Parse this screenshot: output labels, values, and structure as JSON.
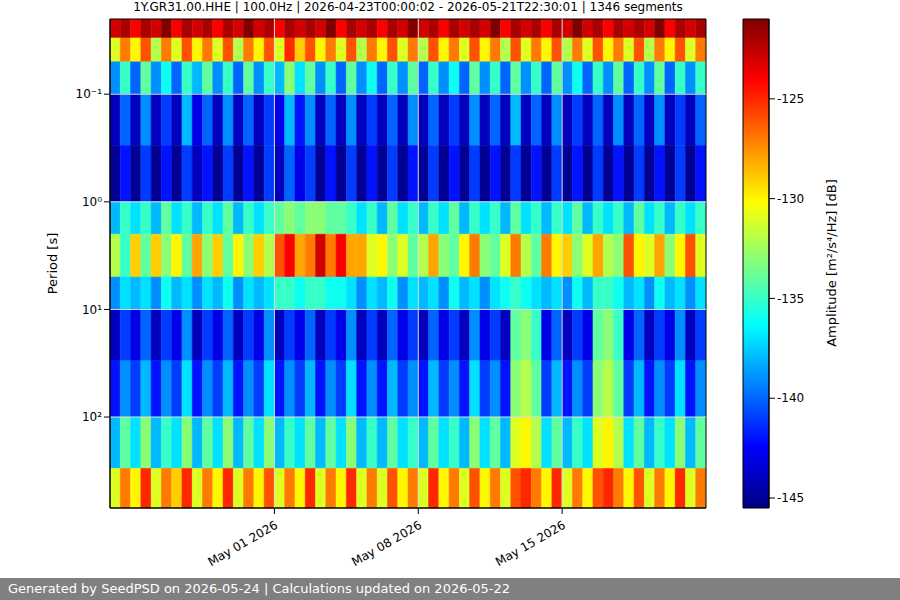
{
  "chart_data": {
    "type": "heatmap",
    "title": "1Y.GR31.00.HHE | 100.0Hz | 2026-04-23T00:00:02 - 2026-05-21T22:30:01 | 1346 segments",
    "ylabel": "Period [s]",
    "footer": "Generated by SeedPSD on 2026-05-24 | Calculations updated on 2026-05-22",
    "log": "y",
    "grid": true,
    "xlim": [
      "2026-04-23T00:00Z",
      "2026-05-22T00:00Z"
    ],
    "xticks": [
      {
        "value": "2026-05-01T00:00Z",
        "label": "May 01 2026"
      },
      {
        "value": "2026-05-08T00:00Z",
        "label": "May 08 2026"
      },
      {
        "value": "2026-05-15T00:00Z",
        "label": "May 15 2026"
      }
    ],
    "ylim": [
      0.02,
      700
    ],
    "yticks": [
      {
        "value": 0.1,
        "label": "10⁻¹"
      },
      {
        "value": 1,
        "label": "10⁰"
      },
      {
        "value": 10,
        "label": "10¹"
      },
      {
        "value": 100,
        "label": "10²"
      }
    ],
    "x_edges": [
      "2026-04-23T00:00Z",
      "2026-04-23T12:00Z",
      "2026-04-24T00:00Z",
      "2026-04-24T12:00Z",
      "2026-04-25T00:00Z",
      "2026-04-25T12:00Z",
      "2026-04-26T00:00Z",
      "2026-04-26T12:00Z",
      "2026-04-27T00:00Z",
      "2026-04-27T12:00Z",
      "2026-04-28T00:00Z",
      "2026-04-28T12:00Z",
      "2026-04-29T00:00Z",
      "2026-04-29T12:00Z",
      "2026-04-30T00:00Z",
      "2026-04-30T12:00Z",
      "2026-05-01T00:00Z",
      "2026-05-01T12:00Z",
      "2026-05-02T00:00Z",
      "2026-05-02T12:00Z",
      "2026-05-03T00:00Z",
      "2026-05-03T12:00Z",
      "2026-05-04T00:00Z",
      "2026-05-04T12:00Z",
      "2026-05-05T00:00Z",
      "2026-05-05T12:00Z",
      "2026-05-06T00:00Z",
      "2026-05-06T12:00Z",
      "2026-05-07T00:00Z",
      "2026-05-07T12:00Z",
      "2026-05-08T00:00Z",
      "2026-05-08T12:00Z",
      "2026-05-09T00:00Z",
      "2026-05-09T12:00Z",
      "2026-05-10T00:00Z",
      "2026-05-10T12:00Z",
      "2026-05-11T00:00Z",
      "2026-05-11T12:00Z",
      "2026-05-12T00:00Z",
      "2026-05-12T12:00Z",
      "2026-05-13T00:00Z",
      "2026-05-13T12:00Z",
      "2026-05-14T00:00Z",
      "2026-05-14T12:00Z",
      "2026-05-15T00:00Z",
      "2026-05-15T12:00Z",
      "2026-05-16T00:00Z",
      "2026-05-16T12:00Z",
      "2026-05-17T00:00Z",
      "2026-05-17T12:00Z",
      "2026-05-18T00:00Z",
      "2026-05-18T12:00Z",
      "2026-05-19T00:00Z",
      "2026-05-19T12:00Z",
      "2026-05-20T00:00Z",
      "2026-05-20T12:00Z",
      "2026-05-21T00:00Z",
      "2026-05-21T12:00Z",
      "2026-05-22T00:00Z"
    ],
    "y_edges": [
      0.02,
      0.03,
      0.05,
      0.1,
      0.3,
      1,
      2,
      5,
      10,
      30,
      100,
      300,
      700
    ],
    "values": [
      [
        -123,
        -122,
        -124,
        -122,
        -123,
        -121,
        -124,
        -122,
        -123,
        -122,
        -124,
        -122,
        -123,
        -121,
        -123,
        -122,
        -124,
        -122,
        -123,
        -122,
        -123,
        -121,
        -124,
        -122,
        -123,
        -122,
        -124,
        -122,
        -123,
        -121,
        -123,
        -122,
        -124,
        -122,
        -123,
        -122,
        -123,
        -121,
        -124,
        -122,
        -123,
        -122,
        -124,
        -122,
        -123,
        -121,
        -123,
        -122,
        -124,
        -122,
        -123,
        -122,
        -123,
        -121,
        -124,
        -122,
        -123,
        -122
      ],
      [
        -131,
        -127,
        -130,
        -126,
        -132,
        -127,
        -131,
        -126,
        -130,
        -127,
        -131,
        -126,
        -132,
        -127,
        -130,
        -126,
        -131,
        -125,
        -129,
        -126,
        -130,
        -127,
        -131,
        -126,
        -132,
        -127,
        -130,
        -126,
        -131,
        -127,
        -132,
        -126,
        -130,
        -127,
        -131,
        -126,
        -130,
        -127,
        -132,
        -126,
        -131,
        -127,
        -130,
        -126,
        -132,
        -127,
        -131,
        -126,
        -130,
        -127,
        -131,
        -126,
        -132,
        -127,
        -130,
        -126,
        -131,
        -127
      ],
      [
        -139,
        -135,
        -140,
        -134,
        -139,
        -136,
        -140,
        -135,
        -138,
        -134,
        -139,
        -135,
        -140,
        -134,
        -139,
        -135,
        -138,
        -133,
        -137,
        -134,
        -139,
        -135,
        -140,
        -134,
        -139,
        -136,
        -140,
        -135,
        -139,
        -134,
        -140,
        -135,
        -139,
        -136,
        -140,
        -134,
        -139,
        -135,
        -140,
        -134,
        -139,
        -135,
        -140,
        -134,
        -139,
        -136,
        -140,
        -135,
        -139,
        -134,
        -140,
        -135,
        -139,
        -134,
        -140,
        -135,
        -139,
        -135
      ],
      [
        -144,
        -140,
        -144,
        -139,
        -144,
        -141,
        -144,
        -138,
        -143,
        -140,
        -144,
        -139,
        -144,
        -140,
        -144,
        -141,
        -143,
        -138,
        -142,
        -139,
        -144,
        -140,
        -144,
        -139,
        -144,
        -141,
        -144,
        -140,
        -144,
        -139,
        -144,
        -140,
        -144,
        -141,
        -144,
        -139,
        -144,
        -140,
        -144,
        -138,
        -144,
        -140,
        -144,
        -139,
        -144,
        -141,
        -144,
        -140,
        -144,
        -139,
        -144,
        -140,
        -144,
        -139,
        -144,
        -141,
        -144,
        -140
      ],
      [
        -145,
        -142,
        -145,
        -141,
        -145,
        -142,
        -145,
        -141,
        -144,
        -142,
        -145,
        -141,
        -145,
        -142,
        -145,
        -141,
        -144,
        -140,
        -143,
        -141,
        -145,
        -142,
        -145,
        -141,
        -145,
        -142,
        -145,
        -141,
        -145,
        -142,
        -145,
        -141,
        -145,
        -142,
        -145,
        -141,
        -145,
        -142,
        -145,
        -141,
        -145,
        -142,
        -145,
        -141,
        -145,
        -142,
        -145,
        -141,
        -145,
        -142,
        -145,
        -141,
        -145,
        -142,
        -145,
        -141,
        -145,
        -142
      ],
      [
        -138,
        -135,
        -137,
        -135,
        -138,
        -134,
        -137,
        -135,
        -138,
        -135,
        -137,
        -134,
        -138,
        -135,
        -137,
        -135,
        -134,
        -133,
        -134,
        -133,
        -133,
        -134,
        -134,
        -135,
        -137,
        -135,
        -138,
        -134,
        -137,
        -135,
        -138,
        -135,
        -137,
        -134,
        -138,
        -135,
        -137,
        -135,
        -138,
        -134,
        -137,
        -135,
        -138,
        -135,
        -137,
        -134,
        -138,
        -135,
        -137,
        -135,
        -138,
        -134,
        -137,
        -135,
        -138,
        -135,
        -137,
        -135
      ],
      [
        -132,
        -135,
        -129,
        -134,
        -129,
        -133,
        -130,
        -134,
        -128,
        -133,
        -129,
        -134,
        -130,
        -133,
        -129,
        -132,
        -126,
        -124,
        -128,
        -127,
        -123,
        -127,
        -124,
        -128,
        -128,
        -131,
        -130,
        -133,
        -131,
        -134,
        -132,
        -128,
        -133,
        -134,
        -130,
        -127,
        -133,
        -134,
        -131,
        -127,
        -132,
        -134,
        -127,
        -130,
        -129,
        -133,
        -131,
        -128,
        -132,
        -133,
        -126,
        -130,
        -131,
        -128,
        -133,
        -130,
        -126,
        -131
      ],
      [
        -139,
        -137,
        -138,
        -137,
        -139,
        -136,
        -138,
        -137,
        -139,
        -137,
        -138,
        -136,
        -139,
        -137,
        -138,
        -137,
        -135,
        -135,
        -136,
        -135,
        -135,
        -136,
        -136,
        -137,
        -139,
        -137,
        -138,
        -136,
        -139,
        -137,
        -138,
        -137,
        -139,
        -136,
        -138,
        -137,
        -139,
        -137,
        -136,
        -135,
        -136,
        -137,
        -138,
        -137,
        -139,
        -136,
        -138,
        -135,
        -135,
        -136,
        -138,
        -137,
        -139,
        -136,
        -138,
        -137,
        -139,
        -137
      ],
      [
        -144,
        -141,
        -143,
        -140,
        -144,
        -141,
        -143,
        -139,
        -144,
        -141,
        -143,
        -140,
        -144,
        -141,
        -143,
        -139,
        -144,
        -141,
        -143,
        -140,
        -144,
        -141,
        -143,
        -139,
        -144,
        -141,
        -144,
        -140,
        -143,
        -141,
        -144,
        -140,
        -143,
        -141,
        -144,
        -139,
        -143,
        -141,
        -144,
        -134,
        -133,
        -135,
        -143,
        -140,
        -144,
        -141,
        -143,
        -134,
        -133,
        -135,
        -143,
        -140,
        -144,
        -141,
        -143,
        -139,
        -144,
        -141
      ],
      [
        -142,
        -139,
        -141,
        -138,
        -142,
        -139,
        -141,
        -137,
        -142,
        -139,
        -141,
        -138,
        -142,
        -139,
        -141,
        -137,
        -142,
        -139,
        -141,
        -138,
        -142,
        -139,
        -141,
        -137,
        -142,
        -139,
        -142,
        -138,
        -141,
        -139,
        -142,
        -138,
        -141,
        -139,
        -142,
        -137,
        -141,
        -139,
        -142,
        -133,
        -132,
        -134,
        -141,
        -138,
        -142,
        -139,
        -141,
        -133,
        -132,
        -134,
        -141,
        -138,
        -142,
        -139,
        -141,
        -137,
        -142,
        -139
      ],
      [
        -138,
        -134,
        -137,
        -133,
        -138,
        -135,
        -137,
        -133,
        -138,
        -134,
        -137,
        -133,
        -138,
        -134,
        -137,
        -133,
        -138,
        -135,
        -137,
        -134,
        -138,
        -134,
        -137,
        -133,
        -138,
        -135,
        -138,
        -134,
        -137,
        -135,
        -138,
        -134,
        -137,
        -135,
        -138,
        -133,
        -137,
        -134,
        -138,
        -131,
        -130,
        -132,
        -137,
        -134,
        -138,
        -135,
        -137,
        -131,
        -130,
        -132,
        -137,
        -134,
        -138,
        -135,
        -137,
        -133,
        -138,
        -134
      ],
      [
        -131,
        -127,
        -130,
        -125,
        -131,
        -127,
        -129,
        -125,
        -131,
        -127,
        -130,
        -125,
        -131,
        -127,
        -130,
        -126,
        -131,
        -127,
        -130,
        -125,
        -131,
        -127,
        -130,
        -125,
        -131,
        -127,
        -131,
        -126,
        -130,
        -127,
        -131,
        -125,
        -130,
        -127,
        -131,
        -126,
        -130,
        -127,
        -131,
        -126,
        -125,
        -127,
        -130,
        -125,
        -131,
        -127,
        -130,
        -126,
        -125,
        -127,
        -130,
        -126,
        -131,
        -127,
        -130,
        -125,
        -131,
        -127
      ]
    ],
    "colorbar": {
      "label": "Amplitude [m²/s⁴/Hz] [dB]",
      "range": [
        -145.5,
        -121
      ],
      "ticks": [
        -145,
        -140,
        -135,
        -130,
        -125
      ]
    }
  }
}
